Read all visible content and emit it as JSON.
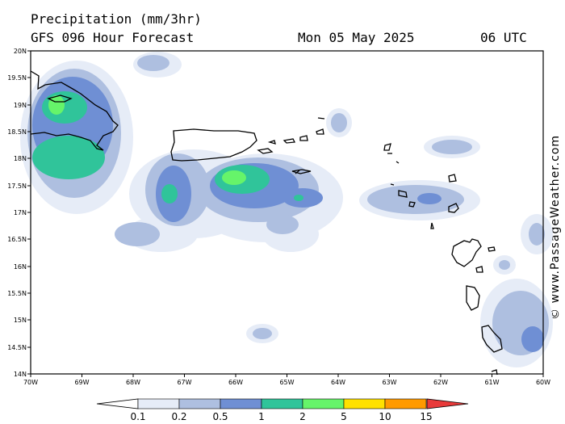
{
  "header": {
    "title": "Precipitation (mm/3hr)",
    "model": "GFS 096 Hour Forecast",
    "date": "Mon 05 May 2025",
    "time": "06 UTC"
  },
  "credit": "© www.PassageWeather.com",
  "axes": {
    "lat_labels": [
      "20N",
      "19.5N",
      "19N",
      "18.5N",
      "18N",
      "17.5N",
      "17N",
      "16.5N",
      "16N",
      "15.5N",
      "15N",
      "14.5N",
      "14N"
    ],
    "lon_labels": [
      "70W",
      "69W",
      "68W",
      "67W",
      "66W",
      "65W",
      "64W",
      "63W",
      "62W",
      "61W",
      "60W"
    ]
  },
  "colorbar": {
    "labels": [
      "0.1",
      "0.2",
      "0.5",
      "1",
      "2",
      "5",
      "10",
      "15"
    ],
    "colors": [
      "#e6ecf7",
      "#aebfe0",
      "#6f8fd4",
      "#30c49a",
      "#66f46a",
      "#ffe100",
      "#ff9a00",
      "#e83a3a"
    ]
  }
}
